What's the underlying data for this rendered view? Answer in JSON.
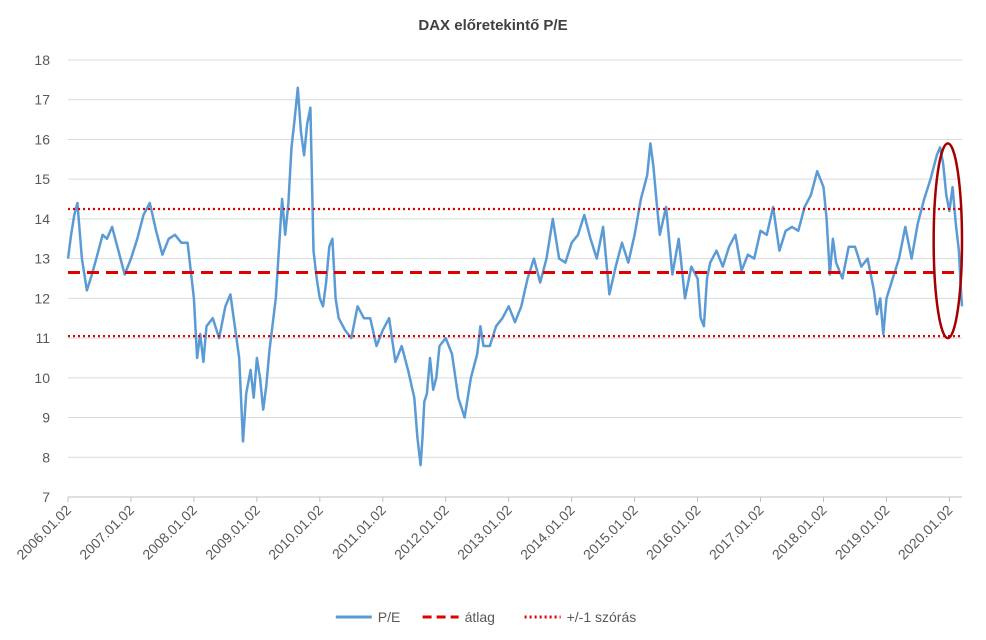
{
  "chart_data": {
    "type": "line",
    "title": "DAX előretekintő  P/E",
    "xlabel": "",
    "ylabel": "",
    "ylim": [
      7,
      18
    ],
    "yticks": [
      "7",
      "8",
      "9",
      "10",
      "11",
      "12",
      "13",
      "14",
      "15",
      "16",
      "17",
      "18"
    ],
    "xticks": [
      "2006.01.02",
      "2007.01.02",
      "2008.01.02",
      "2009.01.02",
      "2010.01.02",
      "2011.01.02",
      "2012.01.02",
      "2013.01.02",
      "2014.01.02",
      "2015.01.02",
      "2016.01.02",
      "2017.01.02",
      "2018.01.02",
      "2019.01.02",
      "2020.01.02"
    ],
    "grid": true,
    "legend_position": "bottom",
    "series": [
      {
        "name": "P/E",
        "style": "solid",
        "color": "#5b9bd5",
        "x": [
          2006.0,
          2006.05,
          2006.1,
          2006.15,
          2006.22,
          2006.3,
          2006.38,
          2006.45,
          2006.5,
          2006.55,
          2006.62,
          2006.7,
          2006.8,
          2006.9,
          2007.0,
          2007.1,
          2007.2,
          2007.3,
          2007.4,
          2007.5,
          2007.6,
          2007.7,
          2007.8,
          2007.9,
          2008.0,
          2008.05,
          2008.1,
          2008.15,
          2008.2,
          2008.3,
          2008.4,
          2008.5,
          2008.58,
          2008.65,
          2008.72,
          2008.78,
          2008.83,
          2008.9,
          2008.95,
          2009.0,
          2009.05,
          2009.1,
          2009.15,
          2009.2,
          2009.3,
          2009.4,
          2009.45,
          2009.5,
          2009.55,
          2009.6,
          2009.65,
          2009.7,
          2009.75,
          2009.8,
          2009.85,
          2009.9,
          2009.95,
          2010.0,
          2010.05,
          2010.1,
          2010.15,
          2010.2,
          2010.25,
          2010.3,
          2010.4,
          2010.5,
          2010.6,
          2010.7,
          2010.8,
          2010.9,
          2011.0,
          2011.1,
          2011.2,
          2011.3,
          2011.4,
          2011.5,
          2011.55,
          2011.6,
          2011.63,
          2011.66,
          2011.7,
          2011.75,
          2011.8,
          2011.85,
          2011.9,
          2012.0,
          2012.1,
          2012.2,
          2012.3,
          2012.4,
          2012.5,
          2012.55,
          2012.6,
          2012.7,
          2012.8,
          2012.9,
          2013.0,
          2013.1,
          2013.2,
          2013.3,
          2013.4,
          2013.5,
          2013.6,
          2013.7,
          2013.8,
          2013.9,
          2014.0,
          2014.1,
          2014.2,
          2014.3,
          2014.4,
          2014.5,
          2014.6,
          2014.7,
          2014.8,
          2014.9,
          2015.0,
          2015.1,
          2015.2,
          2015.25,
          2015.3,
          2015.35,
          2015.4,
          2015.5,
          2015.6,
          2015.7,
          2015.8,
          2015.9,
          2016.0,
          2016.05,
          2016.1,
          2016.15,
          2016.2,
          2016.3,
          2016.4,
          2016.5,
          2016.6,
          2016.7,
          2016.8,
          2016.9,
          2017.0,
          2017.1,
          2017.2,
          2017.3,
          2017.4,
          2017.5,
          2017.6,
          2017.7,
          2017.8,
          2017.9,
          2018.0,
          2018.05,
          2018.1,
          2018.15,
          2018.2,
          2018.3,
          2018.4,
          2018.5,
          2018.6,
          2018.7,
          2018.8,
          2018.85,
          2018.9,
          2018.95,
          2019.0,
          2019.1,
          2019.2,
          2019.3,
          2019.4,
          2019.5,
          2019.6,
          2019.7,
          2019.8,
          2019.85,
          2019.9,
          2019.95,
          2020.0,
          2020.05,
          2020.1,
          2020.15,
          2020.18,
          2020.2
        ],
        "y": [
          13.0,
          13.6,
          14.1,
          14.4,
          13.0,
          12.2,
          12.6,
          13.0,
          13.3,
          13.6,
          13.5,
          13.8,
          13.2,
          12.6,
          13.0,
          13.5,
          14.1,
          14.4,
          13.7,
          13.1,
          13.5,
          13.6,
          13.4,
          13.4,
          12.0,
          10.5,
          11.1,
          10.4,
          11.3,
          11.5,
          11.0,
          11.8,
          12.1,
          11.3,
          10.5,
          8.4,
          9.6,
          10.2,
          9.5,
          10.5,
          10.0,
          9.2,
          9.8,
          10.7,
          12.0,
          14.5,
          13.6,
          14.4,
          15.8,
          16.5,
          17.3,
          16.2,
          15.6,
          16.4,
          16.8,
          13.2,
          12.5,
          12.0,
          11.8,
          12.4,
          13.3,
          13.5,
          12.0,
          11.5,
          11.2,
          11.0,
          11.8,
          11.5,
          11.5,
          10.8,
          11.2,
          11.5,
          10.4,
          10.8,
          10.2,
          9.5,
          8.5,
          7.8,
          8.5,
          9.4,
          9.6,
          10.5,
          9.7,
          10.0,
          10.8,
          11.0,
          10.6,
          9.5,
          9.0,
          10.0,
          10.6,
          11.3,
          10.8,
          10.8,
          11.3,
          11.5,
          11.8,
          11.4,
          11.8,
          12.5,
          13.0,
          12.4,
          13.0,
          14.0,
          13.0,
          12.9,
          13.4,
          13.6,
          14.1,
          13.5,
          13.0,
          13.8,
          12.1,
          12.8,
          13.4,
          12.9,
          13.6,
          14.5,
          15.1,
          15.9,
          15.3,
          14.4,
          13.6,
          14.3,
          12.6,
          13.5,
          12.0,
          12.8,
          12.5,
          11.5,
          11.3,
          12.5,
          12.9,
          13.2,
          12.8,
          13.3,
          13.6,
          12.7,
          13.1,
          13.0,
          13.7,
          13.6,
          14.3,
          13.2,
          13.7,
          13.8,
          13.7,
          14.3,
          14.6,
          15.2,
          14.8,
          14.0,
          12.6,
          13.5,
          12.9,
          12.5,
          13.3,
          13.3,
          12.8,
          13.0,
          12.2,
          11.6,
          12.0,
          11.1,
          12.0,
          12.5,
          13.0,
          13.8,
          13.0,
          13.9,
          14.5,
          15.0,
          15.6,
          15.8,
          15.4,
          14.6,
          14.2,
          14.8,
          13.9,
          13.2,
          12.3,
          11.8
        ]
      },
      {
        "name": "átlag",
        "style": "dashed",
        "color": "#e00000",
        "x": [
          2006.0,
          2020.2
        ],
        "y": [
          12.65,
          12.65
        ]
      },
      {
        "name": "+/-1 szórás",
        "style": "dotted",
        "color": "#e00000",
        "x": [
          2006.0,
          2020.2
        ],
        "y": [
          14.25,
          14.25
        ],
        "y2": [
          11.05,
          11.05
        ]
      }
    ],
    "annotations": [
      {
        "type": "ellipse",
        "color": "#a50000",
        "x_range": [
          2019.75,
          2020.2
        ],
        "y_range": [
          11.0,
          15.9
        ]
      }
    ]
  }
}
